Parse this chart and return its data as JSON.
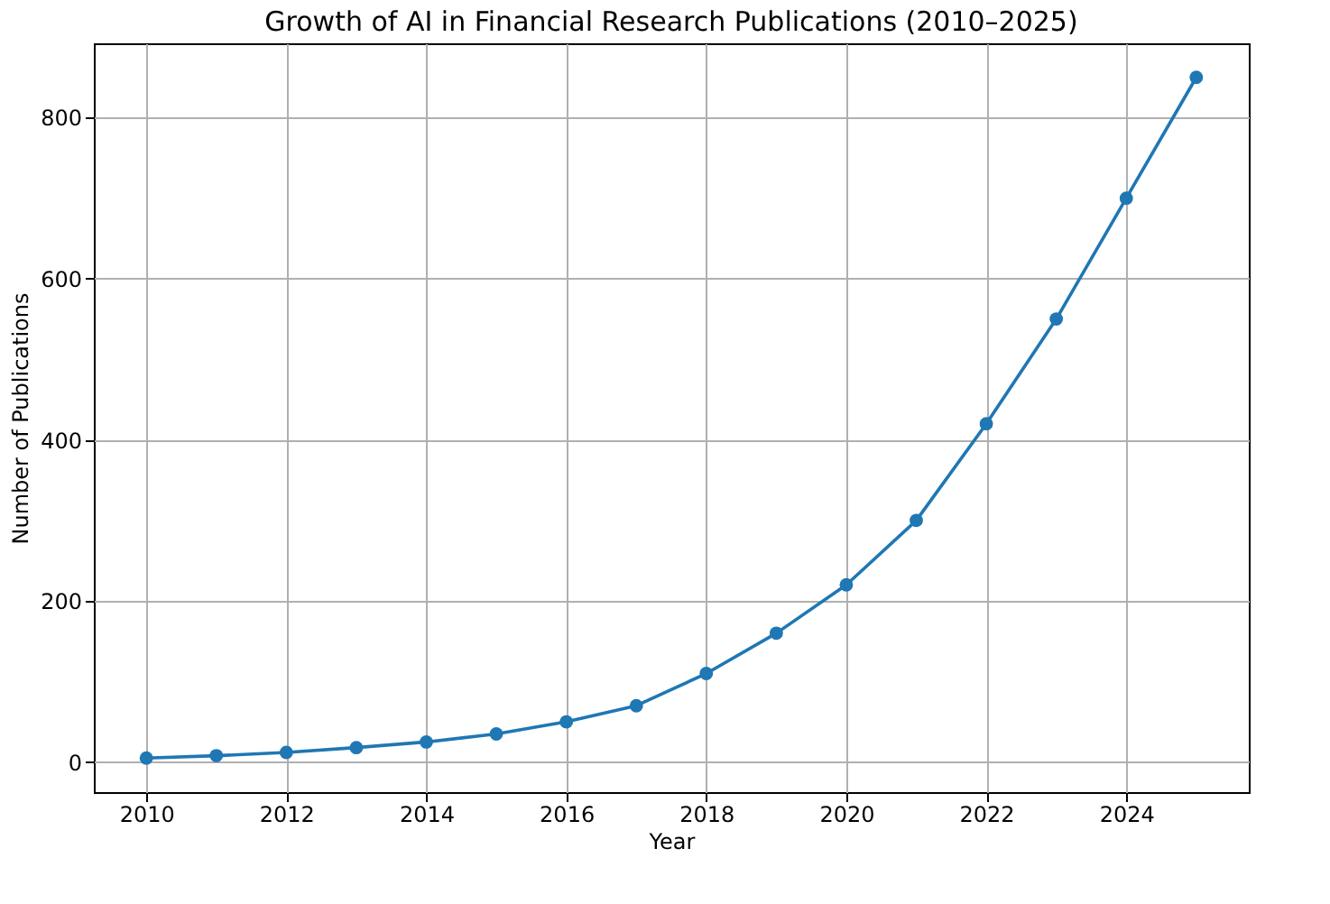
{
  "chart_data": {
    "type": "line",
    "title": "Growth of AI in Financial Research Publications (2010–2025)",
    "xlabel": "Year",
    "ylabel": "Number of Publications",
    "x": [
      2010,
      2011,
      2012,
      2013,
      2014,
      2015,
      2016,
      2017,
      2018,
      2019,
      2020,
      2021,
      2022,
      2023,
      2024,
      2025
    ],
    "series": [
      {
        "color": "#1f77b4",
        "values": [
          5,
          8,
          12,
          18,
          25,
          35,
          50,
          70,
          110,
          160,
          220,
          300,
          420,
          550,
          700,
          850
        ]
      }
    ],
    "xlim": [
      2009.25,
      2025.75
    ],
    "xticks": [
      2010,
      2012,
      2014,
      2016,
      2018,
      2020,
      2022,
      2024
    ],
    "ylim": [
      -37.25,
      892.25
    ],
    "yticks": [
      0,
      200,
      400,
      600,
      800
    ],
    "grid": true,
    "marker": "circle",
    "line_style": "solid"
  }
}
